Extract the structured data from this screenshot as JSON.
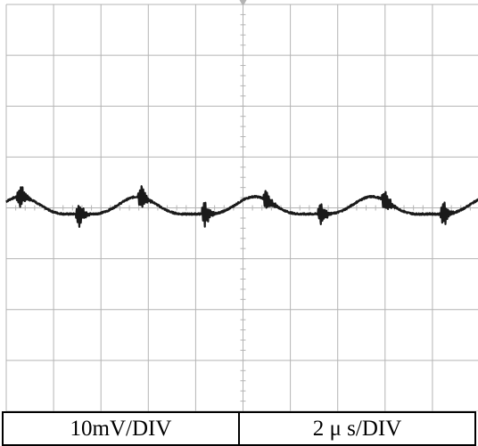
{
  "scale": {
    "vertical_label": "10mV/DIV",
    "horizontal_label": "2 μ s/DIV"
  },
  "colors": {
    "grid": "#b4b4b4",
    "trace": "#1a1a1a",
    "background": "#ffffff"
  },
  "chart_data": {
    "type": "line",
    "title": "",
    "xlabel": "",
    "ylabel": "",
    "grid": true,
    "x_divisions": 10,
    "y_divisions": 8,
    "volts_per_div_mV": 10,
    "time_per_div_us": 2,
    "xlim_us": [
      0,
      20
    ],
    "ylim_mV": [
      -40,
      40
    ],
    "waveform": {
      "description_free": true,
      "offset_mV": 0,
      "ripple_amplitude_mV": 2,
      "ripple_period_us": 4.95,
      "ripple_phase_us": 0.6,
      "switching_spike_times_us": [
        0.6,
        3.1,
        5.7,
        8.4,
        11.0,
        13.3,
        16.0,
        18.5
      ],
      "spike_amplitude_mV": 2.5
    },
    "series": [
      {
        "x": [
          0,
          1,
          2,
          3,
          4,
          5,
          6,
          7,
          8,
          9,
          10,
          11,
          12,
          13,
          14,
          15,
          16,
          17,
          18,
          19,
          20
        ],
        "y": [
          2.0,
          -1.0,
          -1.0,
          1.0,
          2.0,
          0.0,
          -2.0,
          -1.0,
          2.0,
          1.0,
          -1.0,
          0.0,
          -2.0,
          0.0,
          2.0,
          0.0,
          -1.0,
          -1.0,
          1.0,
          -1.0,
          2.0
        ]
      }
    ]
  }
}
